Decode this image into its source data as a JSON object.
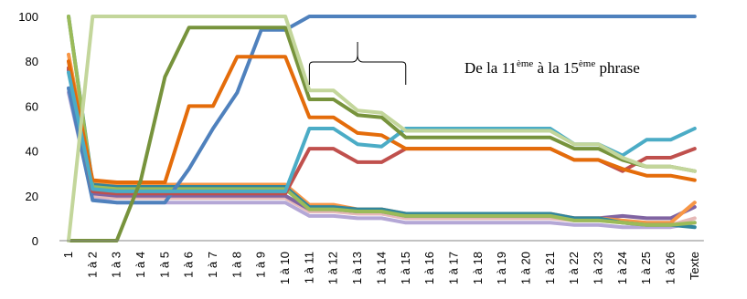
{
  "chart_data": {
    "type": "line",
    "title": "",
    "xlabel": "",
    "ylabel": "",
    "ylim": [
      0,
      100
    ],
    "yticks": [
      0,
      20,
      40,
      60,
      80,
      100
    ],
    "grid": false,
    "legend": "none",
    "categories": [
      "1",
      "1 à 2",
      "1 à 3",
      "1 à 4",
      "1 à 5",
      "1 à 6",
      "1 à 7",
      "1 à 8",
      "1 à 9",
      "1 à 10",
      "1 à 11",
      "1 à 12",
      "1 à 13",
      "1 à 14",
      "1 à 15",
      "1 à 16",
      "1 à 17",
      "1 à 18",
      "1 à 19",
      "1 à 20",
      "1 à 21",
      "1 à 22",
      "1 à 23",
      "1 à 24",
      "1 à 25",
      "1 à 26",
      "Texte"
    ],
    "annotation": {
      "text_before": "De la 11",
      "sup1": "ème",
      "text_middle": " à la 15",
      "sup2": "ème",
      "text_after": " phrase",
      "bracket_from": "1 à 11",
      "bracket_to": "1 à 15"
    },
    "series": [
      {
        "color": "#b4a7d6",
        "values": [
          66,
          19,
          17,
          17,
          17,
          17,
          17,
          17,
          17,
          17,
          11,
          11,
          10,
          10,
          8,
          8,
          8,
          8,
          8,
          8,
          8,
          7,
          7,
          6,
          6,
          6,
          8
        ]
      },
      {
        "color": "#e6b9b8",
        "values": [
          80,
          20,
          19,
          19,
          19,
          19,
          19,
          19,
          19,
          19,
          13,
          13,
          12,
          12,
          10,
          10,
          10,
          10,
          10,
          10,
          10,
          9,
          9,
          8,
          7,
          7,
          10
        ]
      },
      {
        "color": "#8064a2",
        "values": [
          76,
          21,
          20,
          20,
          20,
          20,
          20,
          20,
          20,
          20,
          14,
          14,
          13,
          13,
          11,
          11,
          11,
          11,
          11,
          11,
          11,
          10,
          10,
          11,
          10,
          10,
          15
        ]
      },
      {
        "color": "#f79646",
        "values": [
          83,
          26,
          25,
          25,
          25,
          25,
          25,
          25,
          25,
          25,
          16,
          16,
          14,
          14,
          12,
          12,
          12,
          12,
          12,
          12,
          12,
          10,
          10,
          9,
          8,
          8,
          17
        ]
      },
      {
        "color": "#31859c",
        "values": [
          100,
          25,
          24,
          24,
          24,
          24,
          24,
          24,
          24,
          24,
          15,
          15,
          14,
          14,
          12,
          12,
          12,
          12,
          12,
          12,
          12,
          10,
          10,
          8,
          7,
          7,
          6
        ]
      },
      {
        "color": "#9bbb59",
        "values": [
          100,
          24,
          23,
          23,
          23,
          23,
          23,
          23,
          23,
          23,
          14,
          14,
          13,
          13,
          11,
          11,
          11,
          11,
          11,
          11,
          11,
          9,
          9,
          8,
          7,
          7,
          8
        ]
      },
      {
        "color": "#4f81bd",
        "values": [
          68,
          18,
          17,
          17,
          17,
          32,
          50,
          66,
          94,
          94,
          100,
          100,
          100,
          100,
          100,
          100,
          100,
          100,
          100,
          100,
          100,
          100,
          100,
          100,
          100,
          100,
          100
        ]
      },
      {
        "color": "#c0504d",
        "values": [
          77,
          22,
          21,
          21,
          21,
          21,
          21,
          21,
          21,
          21,
          41,
          41,
          35,
          35,
          41,
          41,
          41,
          41,
          41,
          41,
          41,
          36,
          36,
          31,
          37,
          37,
          41
        ]
      },
      {
        "color": "#e46c0a",
        "values": [
          80,
          27,
          26,
          26,
          26,
          60,
          60,
          82,
          82,
          82,
          55,
          55,
          48,
          47,
          41,
          41,
          41,
          41,
          41,
          41,
          41,
          36,
          36,
          32,
          29,
          29,
          27
        ]
      },
      {
        "color": "#4bacc6",
        "values": [
          75,
          23,
          22,
          22,
          22,
          22,
          22,
          22,
          22,
          22,
          50,
          50,
          43,
          42,
          50,
          50,
          50,
          50,
          50,
          50,
          50,
          43,
          43,
          38,
          45,
          45,
          50
        ]
      },
      {
        "color": "#77933c",
        "values": [
          0,
          0,
          0,
          27,
          73,
          95,
          95,
          95,
          95,
          95,
          63,
          63,
          56,
          55,
          46,
          46,
          46,
          46,
          46,
          46,
          46,
          41,
          41,
          36,
          33,
          33,
          31
        ]
      },
      {
        "color": "#c3d69b",
        "values": [
          0,
          100,
          100,
          100,
          100,
          100,
          100,
          100,
          100,
          100,
          67,
          67,
          58,
          57,
          49,
          49,
          49,
          49,
          49,
          49,
          49,
          43,
          43,
          37,
          33,
          33,
          31
        ]
      }
    ]
  }
}
